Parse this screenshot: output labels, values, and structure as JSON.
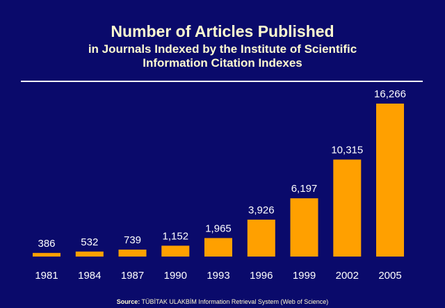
{
  "title": "Number of Articles Published",
  "subtitle_line1": "in Journals Indexed by the Institute of Scientific",
  "subtitle_line2": "Information Citation Indexes",
  "source_label": "Source:",
  "source_text": "TÜBİTAK ULAKBİM Information Retrieval System (Web of Science)",
  "colors": {
    "background": "#0a0a6b",
    "bar": "#ffa000",
    "title": "#fffbd0",
    "labels": "#ffffff"
  },
  "chart_data": {
    "type": "bar",
    "title": "Number of Articles Published",
    "subtitle": "in Journals Indexed by the Institute of Scientific Information Citation Indexes",
    "categories": [
      "1981",
      "1984",
      "1987",
      "1990",
      "1993",
      "1996",
      "1999",
      "2002",
      "2005"
    ],
    "values": [
      386,
      532,
      739,
      1152,
      1965,
      3926,
      6197,
      10315,
      16266
    ],
    "value_labels": [
      "386",
      "532",
      "739",
      "1,152",
      "1,965",
      "3,926",
      "6,197",
      "10,315",
      "16,266"
    ],
    "xlabel": "",
    "ylabel": "",
    "ylim": [
      0,
      16266
    ],
    "grid": false,
    "legend": "none"
  }
}
